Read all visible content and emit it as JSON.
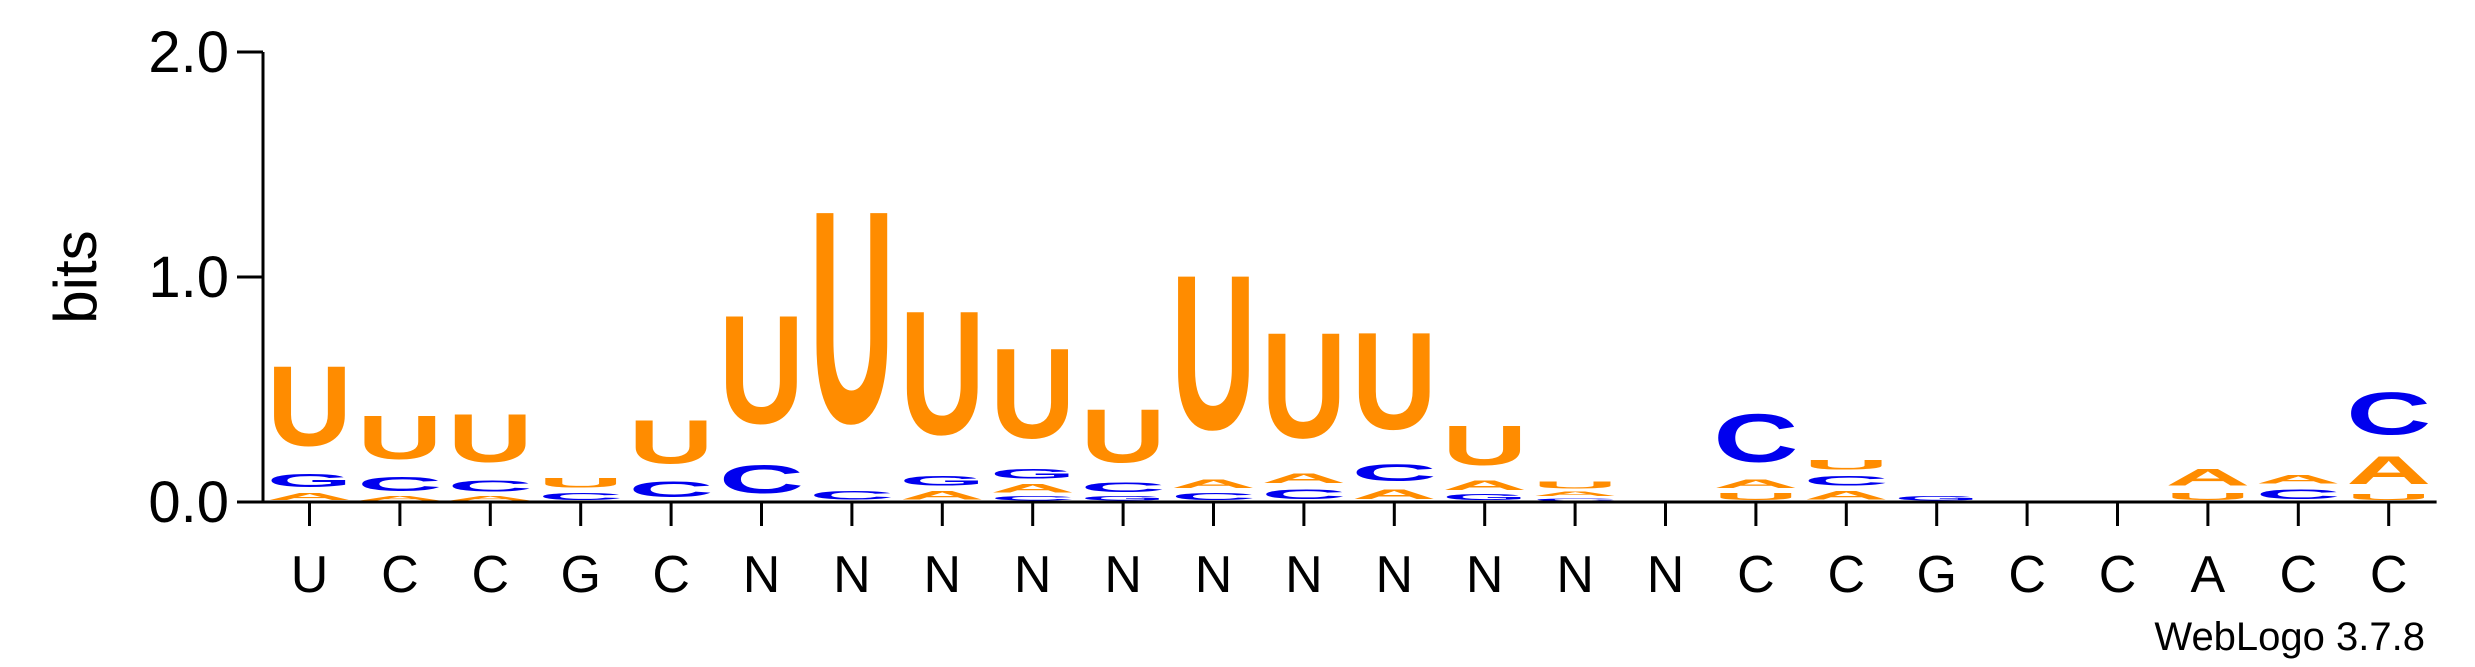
{
  "chart_data": {
    "type": "sequence-logo",
    "ylabel": "bits",
    "ylim": [
      0,
      2.0
    ],
    "yticks": [
      {
        "value": 0.0,
        "label": "0.0"
      },
      {
        "value": 1.0,
        "label": "1.0"
      },
      {
        "value": 2.0,
        "label": "2.0"
      }
    ],
    "x_labels": [
      "U",
      "C",
      "C",
      "G",
      "C",
      "N",
      "N",
      "N",
      "N",
      "N",
      "N",
      "N",
      "N",
      "N",
      "N",
      "N",
      "C",
      "C",
      "G",
      "C",
      "C",
      "A",
      "C",
      "C"
    ],
    "colors": {
      "U": "#FF8C00",
      "A": "#FF8C00",
      "C": "#0000EE",
      "G": "#0000EE"
    },
    "columns": [
      [
        [
          "A",
          0.05
        ],
        [
          "G",
          0.09
        ],
        [
          "U",
          0.57
        ]
      ],
      [
        [
          "A",
          0.03
        ],
        [
          "C",
          0.1
        ],
        [
          "U",
          0.31
        ]
      ],
      [
        [
          "A",
          0.03
        ],
        [
          "C",
          0.08
        ],
        [
          "U",
          0.34
        ]
      ],
      [
        [
          "C",
          0.05
        ],
        [
          "U",
          0.07
        ]
      ],
      [
        [
          "C",
          0.11
        ],
        [
          "U",
          0.31
        ]
      ],
      [
        [
          "C",
          0.2
        ],
        [
          "U",
          0.77
        ]
      ],
      [
        [
          "C",
          0.06
        ],
        [
          "U",
          1.51
        ]
      ],
      [
        [
          "A",
          0.06
        ],
        [
          "G",
          0.07
        ],
        [
          "U",
          0.88
        ]
      ],
      [
        [
          "C",
          0.03
        ],
        [
          "A",
          0.06
        ],
        [
          "G",
          0.07
        ],
        [
          "U",
          0.64
        ]
      ],
      [
        [
          "G",
          0.03
        ],
        [
          "C",
          0.07
        ],
        [
          "U",
          0.38
        ]
      ],
      [
        [
          "C",
          0.05
        ],
        [
          "A",
          0.06
        ],
        [
          "U",
          1.1
        ]
      ],
      [
        [
          "C",
          0.07
        ],
        [
          "A",
          0.07
        ],
        [
          "U",
          0.75
        ]
      ],
      [
        [
          "A",
          0.07
        ],
        [
          "C",
          0.12
        ],
        [
          "U",
          0.69
        ]
      ],
      [
        [
          "G",
          0.04
        ],
        [
          "A",
          0.07
        ],
        [
          "U",
          0.28
        ]
      ],
      [
        [
          "C",
          0.02
        ],
        [
          "A",
          0.03
        ],
        [
          "U",
          0.05
        ]
      ],
      [],
      [
        [
          "U",
          0.05
        ],
        [
          "A",
          0.06
        ],
        [
          "C",
          0.34
        ]
      ],
      [
        [
          "A",
          0.06
        ],
        [
          "C",
          0.07
        ],
        [
          "U",
          0.07
        ]
      ],
      [
        [
          "G",
          0.03
        ]
      ],
      [],
      [],
      [
        [
          "U",
          0.05
        ],
        [
          "A",
          0.12
        ]
      ],
      [
        [
          "C",
          0.07
        ],
        [
          "A",
          0.06
        ]
      ],
      [
        [
          "U",
          0.04
        ],
        [
          "A",
          0.2
        ],
        [
          "C",
          0.3
        ]
      ]
    ],
    "credit": "WebLogo 3.7.8"
  }
}
